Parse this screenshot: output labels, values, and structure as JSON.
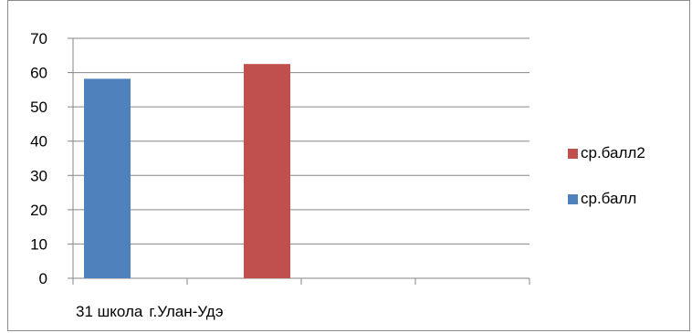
{
  "chart_data": {
    "type": "bar",
    "categories": [
      "31 школа",
      "г.Улан-Удэ",
      "",
      ""
    ],
    "series": [
      {
        "name": "ср.балл",
        "values": [
          58.2,
          null,
          null,
          null
        ],
        "color": "#4F81BD"
      },
      {
        "name": "ср.балл2",
        "values": [
          null,
          62.5,
          null,
          null
        ],
        "color": "#C0504D"
      }
    ],
    "ylim": [
      0,
      70
    ],
    "yticks": [
      0,
      10,
      20,
      30,
      40,
      50,
      60,
      70
    ],
    "grid": true,
    "legend_position": "right",
    "legend_order": [
      "ср.балл2",
      "ср.балл"
    ]
  }
}
